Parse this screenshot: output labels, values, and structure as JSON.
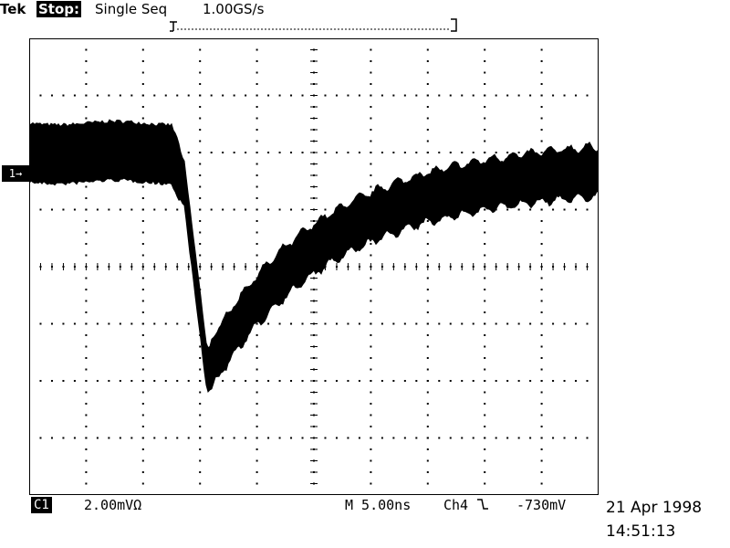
{
  "header": {
    "brand": "Tek",
    "state_label": "Stop:",
    "acquisition_mode": "Single Seq",
    "sample_rate": "1.00GS/s"
  },
  "screen": {
    "grid_divisions": {
      "horizontal": 10,
      "vertical": 8
    },
    "channel_marker": "1→",
    "trace_color": "#000000",
    "background_color": "#ffffff"
  },
  "footer": {
    "channel_badge": "C1",
    "vertical_scale": "2.00mVΩ",
    "timebase": "M 5.00ns",
    "trigger_source": "Ch4",
    "trigger_slope_icon": "falling-edge-icon",
    "trigger_level": "-730mV",
    "date": "21 Apr 1998",
    "time": "14:51:13"
  }
}
